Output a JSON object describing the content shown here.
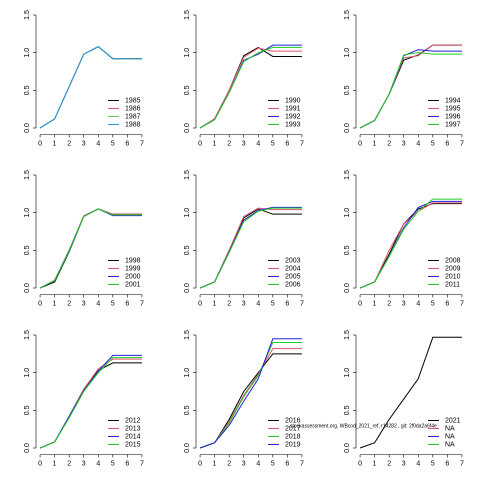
{
  "chart_data": [
    {
      "type": "line",
      "x": [
        0,
        1,
        2,
        3,
        4,
        5,
        6,
        7
      ],
      "xlim": [
        -0.28,
        7.28
      ],
      "ylim": [
        -0.06,
        1.56
      ],
      "xticks": [
        0,
        1,
        2,
        3,
        4,
        5,
        6,
        7
      ],
      "yticks": [
        {
          "value": 0,
          "label": "0.0"
        },
        0.5,
        {
          "value": 1,
          "label": "1.0"
        },
        1.5
      ],
      "legend": "lower right",
      "series": [
        {
          "name": "1985",
          "color": "#000000",
          "values": [
            0,
            0.12,
            0.55,
            0.98,
            1.08,
            0.92,
            0.92,
            0.92
          ]
        },
        {
          "name": "1986",
          "color": "#df536b",
          "values": [
            0,
            0.12,
            0.55,
            0.98,
            1.08,
            0.92,
            0.92,
            0.92
          ]
        },
        {
          "name": "1987",
          "color": "#61d04f",
          "values": [
            0,
            0.12,
            0.55,
            0.98,
            1.08,
            0.92,
            0.92,
            0.92
          ]
        },
        {
          "name": "1988",
          "color": "#2297e6",
          "values": [
            0,
            0.12,
            0.55,
            0.98,
            1.08,
            0.92,
            0.92,
            0.92
          ]
        }
      ]
    },
    {
      "type": "line",
      "x": [
        0,
        1,
        2,
        3,
        4,
        5,
        6,
        7
      ],
      "xlim": [
        -0.28,
        7.28
      ],
      "ylim": [
        -0.06,
        1.56
      ],
      "xticks": [
        0,
        1,
        2,
        3,
        4,
        5,
        6,
        7
      ],
      "yticks": [
        {
          "value": 0,
          "label": "0.0"
        },
        0.5,
        {
          "value": 1,
          "label": "1.0"
        },
        1.5
      ],
      "legend": "lower right",
      "series": [
        {
          "name": "1990",
          "color": "#000000",
          "values": [
            0,
            0.12,
            0.5,
            0.96,
            1.07,
            0.95,
            0.95,
            0.95
          ]
        },
        {
          "name": "1991",
          "color": "#df536b",
          "values": [
            0,
            0.12,
            0.5,
            0.94,
            1.06,
            1.02,
            1.02,
            1.02
          ]
        },
        {
          "name": "1992",
          "color": "#2222dd",
          "values": [
            0,
            0.11,
            0.47,
            0.9,
            0.98,
            1.1,
            1.1,
            1.1
          ]
        },
        {
          "name": "1993",
          "color": "#22cc22",
          "values": [
            0,
            0.11,
            0.47,
            0.88,
            1.0,
            1.07,
            1.07,
            1.07
          ]
        }
      ]
    },
    {
      "type": "line",
      "x": [
        0,
        1,
        2,
        3,
        4,
        5,
        6,
        7
      ],
      "xlim": [
        -0.28,
        7.28
      ],
      "ylim": [
        -0.06,
        1.56
      ],
      "xticks": [
        0,
        1,
        2,
        3,
        4,
        5,
        6,
        7
      ],
      "yticks": [
        {
          "value": 0,
          "label": "0.0"
        },
        0.5,
        {
          "value": 1,
          "label": "1.0"
        },
        1.5
      ],
      "legend": "lower right",
      "series": [
        {
          "name": "1994",
          "color": "#000000",
          "values": [
            0,
            0.1,
            0.45,
            0.9,
            0.97,
            1.1,
            1.1,
            1.1
          ]
        },
        {
          "name": "1995",
          "color": "#df536b",
          "values": [
            0,
            0.1,
            0.45,
            0.93,
            0.96,
            1.1,
            1.1,
            1.1
          ]
        },
        {
          "name": "1996",
          "color": "#2222dd",
          "values": [
            0,
            0.1,
            0.45,
            0.96,
            1.04,
            1.02,
            1.02,
            1.02
          ]
        },
        {
          "name": "1997",
          "color": "#22cc22",
          "values": [
            0,
            0.1,
            0.45,
            0.97,
            1.0,
            0.98,
            0.98,
            0.98
          ]
        }
      ]
    },
    {
      "type": "line",
      "x": [
        0,
        1,
        2,
        3,
        4,
        5,
        6,
        7
      ],
      "xlim": [
        -0.28,
        7.28
      ],
      "ylim": [
        -0.06,
        1.56
      ],
      "xticks": [
        0,
        1,
        2,
        3,
        4,
        5,
        6,
        7
      ],
      "yticks": [
        {
          "value": 0,
          "label": "0.0"
        },
        0.5,
        {
          "value": 1,
          "label": "1.0"
        },
        1.5
      ],
      "legend": "lower right",
      "series": [
        {
          "name": "1998",
          "color": "#000000",
          "values": [
            0,
            0.08,
            0.48,
            0.95,
            1.05,
            0.98,
            0.98,
            0.98
          ]
        },
        {
          "name": "1999",
          "color": "#df536b",
          "values": [
            0,
            0.1,
            0.5,
            0.96,
            1.05,
            0.98,
            0.98,
            0.98
          ]
        },
        {
          "name": "2000",
          "color": "#2222dd",
          "values": [
            0,
            0.1,
            0.5,
            0.95,
            1.05,
            0.96,
            0.96,
            0.96
          ]
        },
        {
          "name": "2001",
          "color": "#22cc22",
          "values": [
            0,
            0.1,
            0.49,
            0.95,
            1.05,
            0.97,
            0.97,
            0.97
          ]
        }
      ]
    },
    {
      "type": "line",
      "x": [
        0,
        1,
        2,
        3,
        4,
        5,
        6,
        7
      ],
      "xlim": [
        -0.28,
        7.28
      ],
      "ylim": [
        -0.06,
        1.56
      ],
      "xticks": [
        0,
        1,
        2,
        3,
        4,
        5,
        6,
        7
      ],
      "yticks": [
        {
          "value": 0,
          "label": "0.0"
        },
        0.5,
        {
          "value": 1,
          "label": "1.0"
        },
        1.5
      ],
      "legend": "lower right",
      "series": [
        {
          "name": "2003",
          "color": "#000000",
          "values": [
            0,
            0.08,
            0.5,
            0.93,
            1.05,
            0.98,
            0.98,
            0.98
          ]
        },
        {
          "name": "2004",
          "color": "#df536b",
          "values": [
            0,
            0.08,
            0.5,
            0.95,
            1.06,
            1.04,
            1.04,
            1.04
          ]
        },
        {
          "name": "2005",
          "color": "#2222dd",
          "values": [
            0,
            0.08,
            0.48,
            0.9,
            1.03,
            1.07,
            1.07,
            1.07
          ]
        },
        {
          "name": "2006",
          "color": "#22cc22",
          "values": [
            0,
            0.08,
            0.47,
            0.88,
            1.02,
            1.06,
            1.06,
            1.06
          ]
        }
      ]
    },
    {
      "type": "line",
      "x": [
        0,
        1,
        2,
        3,
        4,
        5,
        6,
        7
      ],
      "xlim": [
        -0.28,
        7.28
      ],
      "ylim": [
        -0.06,
        1.56
      ],
      "xticks": [
        0,
        1,
        2,
        3,
        4,
        5,
        6,
        7
      ],
      "yticks": [
        {
          "value": 0,
          "label": "0.0"
        },
        0.5,
        {
          "value": 1,
          "label": "1.0"
        },
        1.5
      ],
      "legend": "lower right",
      "series": [
        {
          "name": "2008",
          "color": "#000000",
          "values": [
            0,
            0.08,
            0.45,
            0.85,
            1.05,
            1.12,
            1.12,
            1.12
          ]
        },
        {
          "name": "2009",
          "color": "#df536b",
          "values": [
            0,
            0.08,
            0.5,
            0.85,
            1.02,
            1.13,
            1.13,
            1.13
          ]
        },
        {
          "name": "2010",
          "color": "#2222dd",
          "values": [
            0,
            0.08,
            0.42,
            0.8,
            1.07,
            1.15,
            1.15,
            1.15
          ]
        },
        {
          "name": "2011",
          "color": "#22cc22",
          "values": [
            0,
            0.08,
            0.42,
            0.78,
            1.02,
            1.18,
            1.18,
            1.18
          ]
        }
      ]
    },
    {
      "type": "line",
      "x": [
        0,
        1,
        2,
        3,
        4,
        5,
        6,
        7
      ],
      "xlim": [
        -0.28,
        7.28
      ],
      "ylim": [
        -0.06,
        1.56
      ],
      "xticks": [
        0,
        1,
        2,
        3,
        4,
        5,
        6,
        7
      ],
      "yticks": [
        {
          "value": 0,
          "label": "0.0"
        },
        0.5,
        {
          "value": 1,
          "label": "1.0"
        },
        1.5
      ],
      "legend": "lower right",
      "series": [
        {
          "name": "2012",
          "color": "#000000",
          "values": [
            0,
            0.08,
            0.42,
            0.78,
            1.03,
            1.13,
            1.13,
            1.13
          ]
        },
        {
          "name": "2013",
          "color": "#df536b",
          "values": [
            0,
            0.08,
            0.42,
            0.78,
            1.05,
            1.18,
            1.18,
            1.18
          ]
        },
        {
          "name": "2014",
          "color": "#2222dd",
          "values": [
            0,
            0.08,
            0.42,
            0.76,
            1.02,
            1.23,
            1.23,
            1.23
          ]
        },
        {
          "name": "2015",
          "color": "#22cc22",
          "values": [
            0,
            0.08,
            0.4,
            0.75,
            1.0,
            1.2,
            1.2,
            1.2
          ]
        }
      ]
    },
    {
      "type": "line",
      "x": [
        0,
        1,
        2,
        3,
        4,
        5,
        6,
        7
      ],
      "xlim": [
        -0.28,
        7.28
      ],
      "ylim": [
        -0.06,
        1.56
      ],
      "xticks": [
        0,
        1,
        2,
        3,
        4,
        5,
        6,
        7
      ],
      "yticks": [
        {
          "value": 0,
          "label": "0.0"
        },
        0.5,
        {
          "value": 1,
          "label": "1.0"
        },
        1.5
      ],
      "legend": "lower right",
      "series": [
        {
          "name": "2016",
          "color": "#000000",
          "values": [
            0,
            0.07,
            0.38,
            0.75,
            1.0,
            1.25,
            1.25,
            1.25
          ]
        },
        {
          "name": "2017",
          "color": "#df536b",
          "values": [
            0,
            0.07,
            0.35,
            0.7,
            0.98,
            1.32,
            1.32,
            1.32
          ]
        },
        {
          "name": "2018",
          "color": "#22cc22",
          "values": [
            0,
            0.07,
            0.33,
            0.68,
            0.96,
            1.4,
            1.4,
            1.4
          ]
        },
        {
          "name": "2019",
          "color": "#2222dd",
          "values": [
            0,
            0.07,
            0.3,
            0.62,
            0.92,
            1.45,
            1.45,
            1.45
          ]
        }
      ]
    },
    {
      "type": "line",
      "x": [
        0,
        1,
        2,
        3,
        4,
        5,
        6,
        7
      ],
      "xlim": [
        -0.28,
        7.28
      ],
      "ylim": [
        -0.06,
        1.56
      ],
      "xticks": [
        0,
        1,
        2,
        3,
        4,
        5,
        6,
        7
      ],
      "yticks": [
        {
          "value": 0,
          "label": "0.0"
        },
        0.5,
        {
          "value": 1,
          "label": "1.0"
        },
        1.5
      ],
      "legend": "lower right",
      "series": [
        {
          "name": "2021",
          "color": "#000000",
          "values": [
            0,
            0.07,
            0.38,
            0.65,
            0.92,
            1.47,
            1.47,
            1.47
          ]
        },
        {
          "name": "NA",
          "color": "#df536b",
          "values": [
            null,
            null,
            null,
            null,
            null,
            null,
            null,
            null
          ]
        },
        {
          "name": "NA",
          "color": "#2222dd",
          "values": [
            null,
            null,
            null,
            null,
            null,
            null,
            null,
            null
          ]
        },
        {
          "name": "NA",
          "color": "#22cc22",
          "values": [
            null,
            null,
            null,
            null,
            null,
            null,
            null,
            null
          ]
        }
      ]
    }
  ],
  "note": "stockassessment.org, WBcod_2021_ref, r14282 , git: 2f0da2a6f4e"
}
